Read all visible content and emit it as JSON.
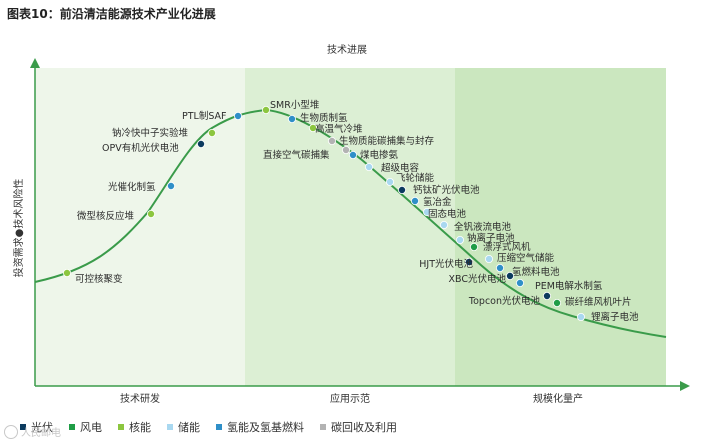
{
  "title": "图表10：前沿清洁能源技术产业化进展",
  "axes": {
    "x_top_label": "技术进展",
    "y_label": "投资需求●技术风险性"
  },
  "phases": [
    {
      "label": "技术研发",
      "color": "#eef6ea"
    },
    {
      "label": "应用示范",
      "color": "#dcefd4"
    },
    {
      "label": "规模化量产",
      "color": "#cbe7bf"
    }
  ],
  "categories": [
    {
      "key": "solar",
      "label": "光伏",
      "color": "#0b3a5e"
    },
    {
      "key": "wind",
      "label": "风电",
      "color": "#1f9d46"
    },
    {
      "key": "nuclear",
      "label": "核能",
      "color": "#8cc63f"
    },
    {
      "key": "storage",
      "label": "储能",
      "color": "#a9d8f0"
    },
    {
      "key": "hydrogen",
      "label": "氢能及氢基燃料",
      "color": "#2f8fc8"
    },
    {
      "key": "ccus",
      "label": "碳回收及利用",
      "color": "#b3b3b3"
    }
  ],
  "technologies": [
    {
      "label": "可控核聚变",
      "category": "nuclear"
    },
    {
      "label": "微型核反应堆",
      "category": "nuclear"
    },
    {
      "label": "光催化制氢",
      "category": "hydrogen"
    },
    {
      "label": "OPV有机光伏电池",
      "category": "solar"
    },
    {
      "label": "钠冷快中子实验堆",
      "category": "nuclear"
    },
    {
      "label": "PTL制SAF",
      "category": "hydrogen"
    },
    {
      "label": "SMR小型堆",
      "category": "nuclear"
    },
    {
      "label": "生物质制氢",
      "category": "hydrogen"
    },
    {
      "label": "高温气冷堆",
      "category": "nuclear"
    },
    {
      "label": "生物质能碳捕集与封存",
      "category": "ccus"
    },
    {
      "label": "直接空气碳捕集",
      "category": "ccus"
    },
    {
      "label": "煤电掺氨",
      "category": "hydrogen"
    },
    {
      "label": "超级电容",
      "category": "storage"
    },
    {
      "label": "飞轮储能",
      "category": "storage"
    },
    {
      "label": "钙钛矿光伏电池",
      "category": "solar"
    },
    {
      "label": "氢冶金",
      "category": "hydrogen"
    },
    {
      "label": "固态电池",
      "category": "storage"
    },
    {
      "label": "全钒液流电池",
      "category": "storage"
    },
    {
      "label": "钠离子电池",
      "category": "storage"
    },
    {
      "label": "漂浮式风机",
      "category": "wind"
    },
    {
      "label": "压缩空气储能",
      "category": "storage"
    },
    {
      "label": "HJT光伏电池",
      "category": "solar"
    },
    {
      "label": "氢燃料电池",
      "category": "hydrogen"
    },
    {
      "label": "XBC光伏电池",
      "category": "solar"
    },
    {
      "label": "PEM电解水制氢",
      "category": "hydrogen"
    },
    {
      "label": "Topcon光伏电池",
      "category": "solar"
    },
    {
      "label": "碳纤维风机叶片",
      "category": "wind"
    },
    {
      "label": "锂离子电池",
      "category": "storage"
    }
  ],
  "watermark": "人民邮电"
}
